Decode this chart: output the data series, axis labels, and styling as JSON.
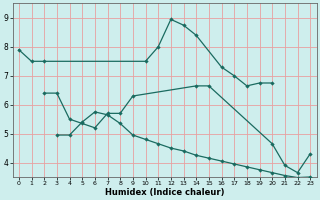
{
  "xlabel": "Humidex (Indice chaleur)",
  "bg_color": "#ceeeed",
  "line_color": "#1a6b60",
  "grid_color": "#e8a0a0",
  "xlim": [
    -0.5,
    23.5
  ],
  "ylim": [
    3.5,
    9.5
  ],
  "yticks": [
    4,
    5,
    6,
    7,
    8,
    9
  ],
  "xticks": [
    0,
    1,
    2,
    3,
    4,
    5,
    6,
    7,
    8,
    9,
    10,
    11,
    12,
    13,
    14,
    15,
    16,
    17,
    18,
    19,
    20,
    21,
    22,
    23
  ],
  "line1_x": [
    0,
    1,
    2,
    10,
    11,
    12,
    13,
    14,
    16,
    17,
    18,
    19,
    20
  ],
  "line1_y": [
    7.9,
    7.5,
    7.5,
    7.5,
    8.0,
    8.95,
    8.75,
    8.4,
    7.3,
    7.0,
    6.65,
    6.75,
    6.75
  ],
  "line2_x": [
    2,
    3,
    4,
    5,
    6,
    7,
    8,
    9,
    14,
    15,
    20,
    21,
    22,
    23
  ],
  "line2_y": [
    6.4,
    6.4,
    5.5,
    5.35,
    5.2,
    5.7,
    5.7,
    6.3,
    6.65,
    6.65,
    4.65,
    3.9,
    3.65,
    4.3
  ],
  "line3_x": [
    3,
    4,
    5,
    6,
    7,
    8,
    9,
    10,
    11,
    12,
    13,
    14,
    15,
    16,
    17,
    18,
    19,
    20,
    21,
    22,
    23
  ],
  "line3_y": [
    4.95,
    4.95,
    5.4,
    5.75,
    5.65,
    5.35,
    4.95,
    4.8,
    4.65,
    4.5,
    4.4,
    4.25,
    4.15,
    4.05,
    3.95,
    3.85,
    3.75,
    3.65,
    3.55,
    3.48,
    3.5
  ]
}
